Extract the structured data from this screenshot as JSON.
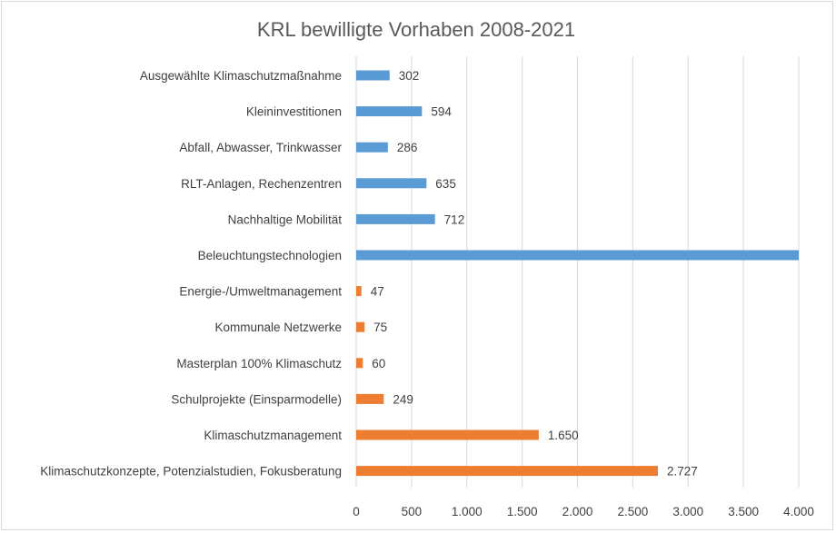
{
  "chart_data": {
    "type": "bar",
    "orientation": "horizontal",
    "title": "KRL bewilligte Vorhaben 2008-2021",
    "xlabel": "",
    "ylabel": "",
    "xlim": [
      0,
      4000
    ],
    "x_ticks": [
      "0",
      "500",
      "1.000",
      "1.500",
      "2.000",
      "2.500",
      "3.000",
      "3.500",
      "4.000"
    ],
    "grid": "vertical",
    "legend": "none",
    "colors": {
      "blue": "#5b9bd5",
      "orange": "#ed7d31"
    },
    "bars": [
      {
        "category": "Ausgewählte Klimaschutzmaßnahme",
        "value": 302,
        "label": "302",
        "color": "#5b9bd5"
      },
      {
        "category": "Kleininvestitionen",
        "value": 594,
        "label": "594",
        "color": "#5b9bd5"
      },
      {
        "category": "Abfall, Abwasser, Trinkwasser",
        "value": 286,
        "label": "286",
        "color": "#5b9bd5"
      },
      {
        "category": "RLT-Anlagen, Rechenzentren",
        "value": 635,
        "label": "635",
        "color": "#5b9bd5"
      },
      {
        "category": "Nachhaltige Mobilität",
        "value": 712,
        "label": "712",
        "color": "#5b9bd5"
      },
      {
        "category": "Beleuchtungstechnologien",
        "value": 4000,
        "label": "",
        "color": "#5b9bd5"
      },
      {
        "category": "Energie-/Umweltmanagement",
        "value": 47,
        "label": "47",
        "color": "#ed7d31"
      },
      {
        "category": "Kommunale Netzwerke",
        "value": 75,
        "label": "75",
        "color": "#ed7d31"
      },
      {
        "category": "Masterplan 100% Klimaschutz",
        "value": 60,
        "label": "60",
        "color": "#ed7d31"
      },
      {
        "category": "Schulprojekte (Einsparmodelle)",
        "value": 249,
        "label": "249",
        "color": "#ed7d31"
      },
      {
        "category": "Klimaschutzmanagement",
        "value": 1650,
        "label": "1.650",
        "color": "#ed7d31"
      },
      {
        "category": "Klimaschutzkonzepte, Potenzialstudien, Fokusberatung",
        "value": 2727,
        "label": "2.727",
        "color": "#ed7d31"
      }
    ]
  }
}
